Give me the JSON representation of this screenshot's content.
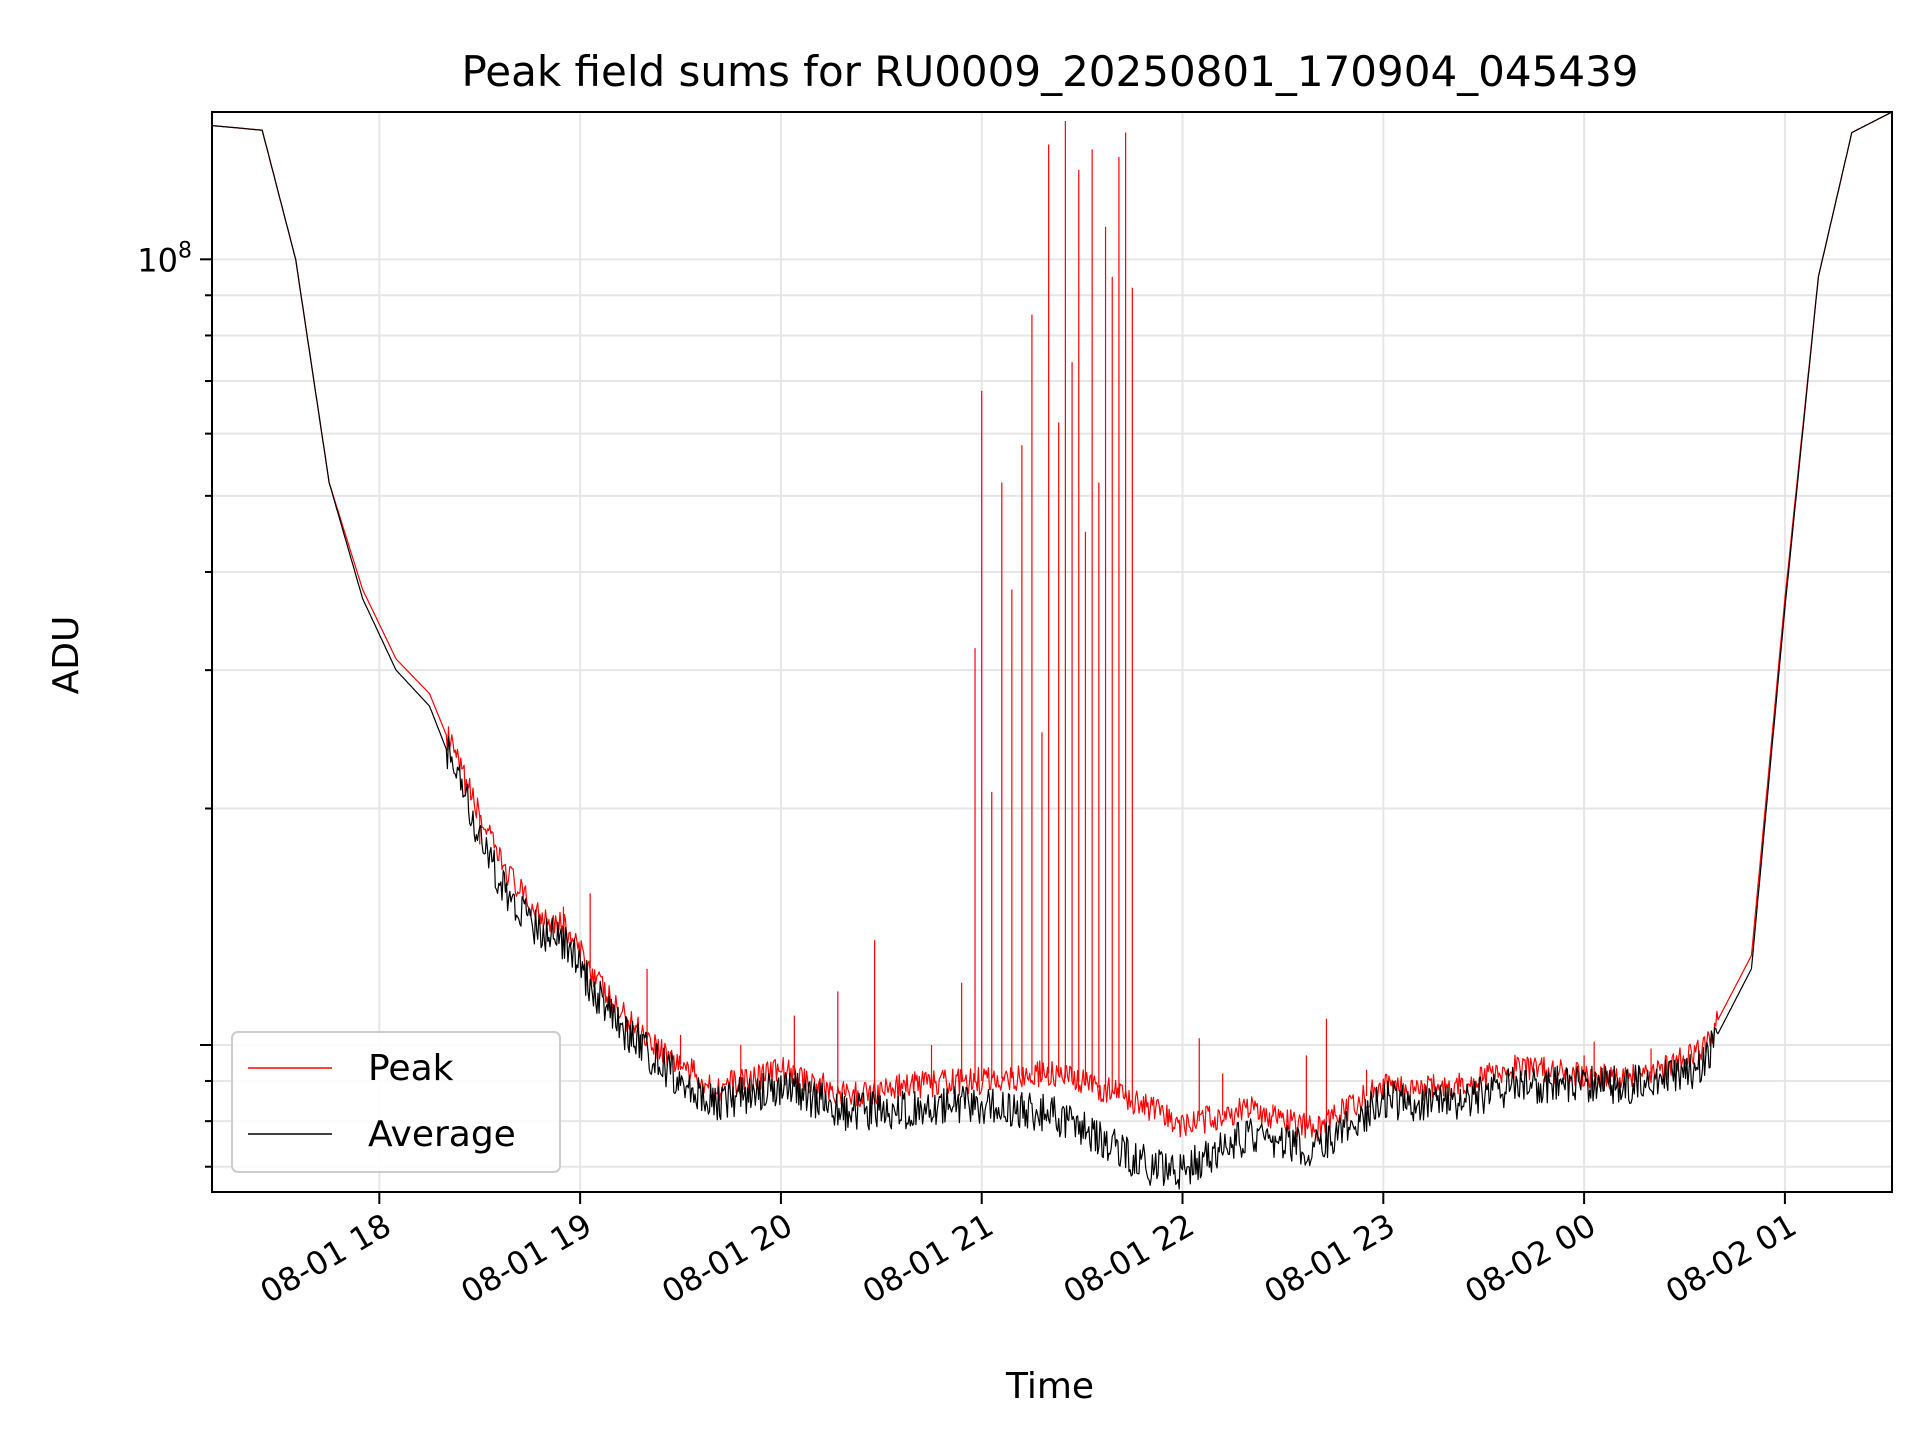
{
  "chart_data": {
    "type": "line",
    "title": "Peak field sums for RU0009_20250801_170904_045439",
    "xlabel": "Time",
    "ylabel": "ADU",
    "y_scale": "log",
    "ylim": [
      6500000,
      154000000
    ],
    "xlim": [
      "2025-08-01 17:10",
      "2025-08-02 01:32"
    ],
    "grid": true,
    "legend_position": "lower-left",
    "x_tick_labels": [
      "08-01 18",
      "08-01 19",
      "08-01 20",
      "08-01 21",
      "08-01 22",
      "08-01 23",
      "08-02 00",
      "08-02 01"
    ],
    "y_tick_labels": [
      {
        "base": "10",
        "exp": "8"
      }
    ],
    "series": [
      {
        "name": "Peak",
        "color": "#ff0000",
        "x": [
          "2025-08-01 17:10",
          "2025-08-01 17:25",
          "2025-08-01 17:35",
          "2025-08-01 17:45",
          "2025-08-01 17:55",
          "2025-08-01 18:05",
          "2025-08-01 18:15",
          "2025-08-01 18:25",
          "2025-08-01 18:35",
          "2025-08-01 18:45",
          "2025-08-01 18:55",
          "2025-08-01 19:10",
          "2025-08-01 19:25",
          "2025-08-01 19:40",
          "2025-08-01 20:00",
          "2025-08-01 20:20",
          "2025-08-01 20:40",
          "2025-08-01 21:00",
          "2025-08-01 21:20",
          "2025-08-01 21:40",
          "2025-08-01 21:50",
          "2025-08-01 22:00",
          "2025-08-01 22:20",
          "2025-08-01 22:40",
          "2025-08-01 23:00",
          "2025-08-01 23:20",
          "2025-08-01 23:40",
          "2025-08-02 00:00",
          "2025-08-02 00:20",
          "2025-08-02 00:35",
          "2025-08-02 00:50",
          "2025-08-02 01:00",
          "2025-08-02 01:10",
          "2025-08-02 01:20",
          "2025-08-02 01:32"
        ],
        "values": [
          148000000,
          146000000,
          100000000,
          52000000,
          38000000,
          31000000,
          28000000,
          22000000,
          17500000,
          15000000,
          14200000,
          11200000,
          9800000,
          8800000,
          9300000,
          8600000,
          8900000,
          9000000,
          9200000,
          8700000,
          8300000,
          7900000,
          8300000,
          7800000,
          8900000,
          8800000,
          9400000,
          9100000,
          9200000,
          9800000,
          13000000,
          37000000,
          95000000,
          145000000,
          154000000
        ]
      },
      {
        "name": "Average",
        "color": "#000000",
        "x": [
          "2025-08-01 17:10",
          "2025-08-01 17:25",
          "2025-08-01 17:35",
          "2025-08-01 17:45",
          "2025-08-01 17:55",
          "2025-08-01 18:05",
          "2025-08-01 18:15",
          "2025-08-01 18:25",
          "2025-08-01 18:35",
          "2025-08-01 18:45",
          "2025-08-01 18:55",
          "2025-08-01 19:10",
          "2025-08-01 19:25",
          "2025-08-01 19:40",
          "2025-08-01 20:00",
          "2025-08-01 20:20",
          "2025-08-01 20:40",
          "2025-08-01 21:00",
          "2025-08-01 21:20",
          "2025-08-01 21:40",
          "2025-08-01 21:50",
          "2025-08-01 22:00",
          "2025-08-01 22:20",
          "2025-08-01 22:40",
          "2025-08-01 23:00",
          "2025-08-01 23:20",
          "2025-08-01 23:40",
          "2025-08-02 00:00",
          "2025-08-02 00:20",
          "2025-08-02 00:35",
          "2025-08-02 00:50",
          "2025-08-02 01:00",
          "2025-08-02 01:10",
          "2025-08-02 01:20",
          "2025-08-02 01:32"
        ],
        "values": [
          148000000,
          146000000,
          100000000,
          52000000,
          37000000,
          30000000,
          27000000,
          21000000,
          16500000,
          14200000,
          13600000,
          10700000,
          9400000,
          8400000,
          8900000,
          8200000,
          8300000,
          8400000,
          8200000,
          7400000,
          7000000,
          6900000,
          7700000,
          7400000,
          8500000,
          8400000,
          8900000,
          8900000,
          8900000,
          9400000,
          12500000,
          36000000,
          95000000,
          145000000,
          154000000
        ]
      }
    ],
    "peak_spikes": {
      "x": [
        "2025-08-01 18:30",
        "2025-08-01 18:55",
        "2025-08-01 19:03",
        "2025-08-01 19:20",
        "2025-08-01 19:30",
        "2025-08-01 19:48",
        "2025-08-01 20:04",
        "2025-08-01 20:17",
        "2025-08-01 20:28",
        "2025-08-01 20:45",
        "2025-08-01 20:54",
        "2025-08-01 20:58",
        "2025-08-01 21:00",
        "2025-08-01 21:03",
        "2025-08-01 21:06",
        "2025-08-01 21:09",
        "2025-08-01 21:12",
        "2025-08-01 21:15",
        "2025-08-01 21:18",
        "2025-08-01 21:20",
        "2025-08-01 21:23",
        "2025-08-01 21:25",
        "2025-08-01 21:27",
        "2025-08-01 21:29",
        "2025-08-01 21:31",
        "2025-08-01 21:33",
        "2025-08-01 21:35",
        "2025-08-01 21:37",
        "2025-08-01 21:39",
        "2025-08-01 21:41",
        "2025-08-01 21:43",
        "2025-08-01 21:45",
        "2025-08-01 22:05",
        "2025-08-01 22:12",
        "2025-08-01 22:27",
        "2025-08-01 22:37",
        "2025-08-01 22:43",
        "2025-08-01 22:55",
        "2025-08-02 00:00",
        "2025-08-02 00:03",
        "2025-08-02 00:20"
      ],
      "values": [
        18000000,
        15000000,
        15600000,
        12500000,
        10300000,
        10000000,
        10900000,
        11700000,
        13600000,
        10000000,
        12000000,
        32000000,
        68000000,
        21000000,
        52000000,
        38000000,
        58000000,
        85000000,
        25000000,
        140000000,
        62000000,
        150000000,
        74000000,
        130000000,
        45000000,
        138000000,
        52000000,
        110000000,
        95000000,
        135000000,
        145000000,
        92000000,
        10200000,
        9200000,
        8400000,
        9700000,
        10800000,
        9300000,
        9700000,
        10100000,
        9900000
      ]
    }
  }
}
